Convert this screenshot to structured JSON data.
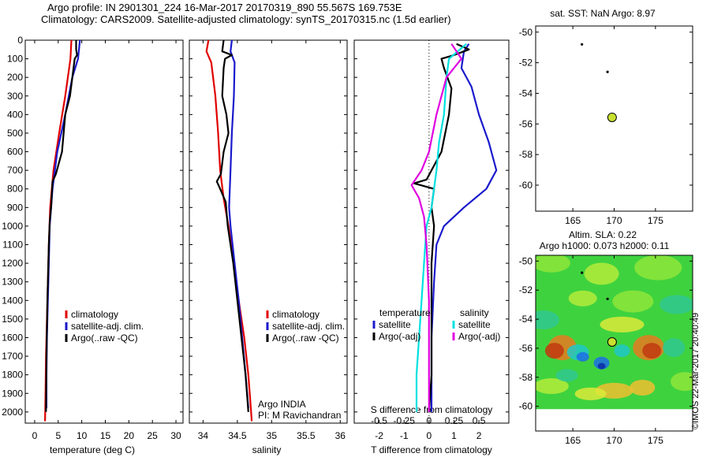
{
  "header": {
    "title_line1": "Argo profile: IN 2901301_224 16-Mar-2017 20170319_890 55.567S 169.753E",
    "title_line2": "Climatology: CARS2009. Satellite-adjusted climatology: synTS_20170315.nc (1.5d earlier)"
  },
  "stamp": "©IMOS 22-Mar-2017 20:40:49",
  "colors": {
    "climatology": "#e00000",
    "satellite": "#1a1acc",
    "argo": "#000000",
    "cyan": "#00e0e0",
    "magenta": "#e000e0"
  },
  "chart_data": [
    {
      "id": "temperature",
      "type": "line",
      "xlabel": "temperature (deg C)",
      "ylabel": "",
      "xlim": [
        -2,
        31.5
      ],
      "ylim": [
        2060,
        0
      ],
      "xticks": [
        0,
        5,
        10,
        15,
        20,
        25,
        30
      ],
      "yticks": [
        0,
        100,
        200,
        300,
        400,
        500,
        600,
        700,
        800,
        900,
        1000,
        1100,
        1200,
        1300,
        1400,
        1500,
        1600,
        1700,
        1800,
        1900,
        2000
      ],
      "legend": {
        "placement": "bottom-center",
        "entries": [
          "climatology",
          "satellite-adj. clim.",
          "Argo(..raw -QC)"
        ]
      },
      "series": [
        {
          "name": "climatology",
          "color": "#e00000",
          "points": [
            [
              7.8,
              0
            ],
            [
              7.6,
              100
            ],
            [
              6.5,
              300
            ],
            [
              5.2,
              500
            ],
            [
              4.0,
              700
            ],
            [
              3.3,
              900
            ],
            [
              3.0,
              1100
            ],
            [
              2.8,
              1300
            ],
            [
              2.6,
              1500
            ],
            [
              2.4,
              1700
            ],
            [
              2.3,
              1900
            ],
            [
              2.2,
              2050
            ]
          ]
        },
        {
          "name": "satellite-adj. clim.",
          "color": "#1a1acc",
          "points": [
            [
              9.6,
              0
            ],
            [
              9.2,
              100
            ],
            [
              8.0,
              200
            ],
            [
              6.5,
              400
            ],
            [
              4.8,
              600
            ],
            [
              3.8,
              800
            ],
            [
              3.2,
              1000
            ],
            [
              3.0,
              1200
            ],
            [
              2.8,
              1400
            ],
            [
              2.6,
              1600
            ],
            [
              2.5,
              1800
            ],
            [
              2.5,
              1980
            ]
          ]
        },
        {
          "name": "Argo(..raw -QC)",
          "color": "#000000",
          "points": [
            [
              8.8,
              0
            ],
            [
              8.8,
              50
            ],
            [
              9.0,
              80
            ],
            [
              8.5,
              100
            ],
            [
              8.0,
              200
            ],
            [
              7.5,
              300
            ],
            [
              6.5,
              400
            ],
            [
              5.8,
              600
            ],
            [
              4.5,
              720
            ],
            [
              3.8,
              760
            ],
            [
              3.5,
              900
            ],
            [
              3.2,
              980
            ],
            [
              3.0,
              1100
            ],
            [
              2.7,
              1400
            ],
            [
              2.5,
              1700
            ],
            [
              2.4,
              2000
            ]
          ]
        }
      ]
    },
    {
      "id": "salinity",
      "type": "line",
      "xlabel": "salinity",
      "ylabel": "",
      "xlim": [
        33.8,
        36.1
      ],
      "ylim": [
        2060,
        0
      ],
      "xticks": [
        34,
        34.5,
        35,
        35.5,
        36
      ],
      "xticklabels": [
        "34",
        "34.5",
        "35",
        "35.5",
        "36"
      ],
      "legend": {
        "placement": "bottom-right",
        "entries": [
          "climatology",
          "satellite-adj. clim.",
          "Argo(..raw -QC)"
        ]
      },
      "annotation": [
        "Argo INDIA",
        "PI: M Ravichandran"
      ],
      "series": [
        {
          "name": "climatology",
          "color": "#e00000",
          "points": [
            [
              34.08,
              0
            ],
            [
              34.05,
              60
            ],
            [
              34.12,
              120
            ],
            [
              34.18,
              300
            ],
            [
              34.22,
              500
            ],
            [
              34.25,
              700
            ],
            [
              34.3,
              850
            ],
            [
              34.37,
              1000
            ],
            [
              34.45,
              1200
            ],
            [
              34.52,
              1400
            ],
            [
              34.6,
              1600
            ],
            [
              34.66,
              1800
            ],
            [
              34.7,
              2000
            ],
            [
              34.71,
              2050
            ]
          ]
        },
        {
          "name": "satellite-adj. clim.",
          "color": "#1a1acc",
          "points": [
            [
              34.42,
              0
            ],
            [
              34.4,
              60
            ],
            [
              34.46,
              120
            ],
            [
              34.45,
              300
            ],
            [
              34.42,
              500
            ],
            [
              34.4,
              700
            ],
            [
              34.38,
              900
            ],
            [
              34.4,
              1000
            ],
            [
              34.46,
              1200
            ],
            [
              34.52,
              1400
            ],
            [
              34.57,
              1600
            ],
            [
              34.62,
              1800
            ],
            [
              34.66,
              1980
            ]
          ]
        },
        {
          "name": "Argo(..raw -QC)",
          "color": "#000000",
          "points": [
            [
              34.3,
              0
            ],
            [
              34.28,
              60
            ],
            [
              34.42,
              80
            ],
            [
              34.32,
              100
            ],
            [
              34.3,
              150
            ],
            [
              34.28,
              300
            ],
            [
              34.34,
              400
            ],
            [
              34.37,
              500
            ],
            [
              34.3,
              600
            ],
            [
              34.26,
              720
            ],
            [
              34.2,
              760
            ],
            [
              34.25,
              800
            ],
            [
              34.33,
              870
            ],
            [
              34.36,
              1000
            ],
            [
              34.44,
              1200
            ],
            [
              34.5,
              1400
            ],
            [
              34.56,
              1600
            ],
            [
              34.62,
              1800
            ],
            [
              34.66,
              2000
            ]
          ]
        }
      ]
    },
    {
      "id": "difference",
      "type": "line",
      "xlabel": "T difference from climatology",
      "top_label": "S difference from climatology",
      "ylabel": "",
      "xlim": [
        -3,
        3.2
      ],
      "ylim": [
        2060,
        0
      ],
      "xticks": [
        -2,
        -1,
        0,
        1,
        2
      ],
      "top_ticks": [
        -2,
        -1,
        0,
        1,
        2
      ],
      "top_ticklabels": [
        "-0.5",
        "-0.25",
        "0",
        "0.25",
        "0.5"
      ],
      "legend": {
        "placement": "bottom",
        "group1_title": "temperature",
        "group2_title": "salinity",
        "group1_entries": [
          "satellite",
          "Argo(-adj)"
        ],
        "group2_entries": [
          "satellite",
          "Argo(-adj)"
        ]
      },
      "series": [
        {
          "name": "temperature satellite",
          "color": "#1a1acc",
          "points": [
            [
              1.6,
              20
            ],
            [
              1.4,
              60
            ],
            [
              1.3,
              150
            ],
            [
              1.7,
              250
            ],
            [
              2.0,
              400
            ],
            [
              2.4,
              550
            ],
            [
              2.7,
              700
            ],
            [
              2.3,
              800
            ],
            [
              1.4,
              900
            ],
            [
              0.6,
              1000
            ],
            [
              0.3,
              1100
            ],
            [
              0.2,
              1300
            ],
            [
              0.1,
              1600
            ],
            [
              0.1,
              2000
            ]
          ]
        },
        {
          "name": "temperature Argo(-adj)",
          "color": "#000000",
          "points": [
            [
              1.1,
              20
            ],
            [
              1.6,
              50
            ],
            [
              1.0,
              80
            ],
            [
              0.5,
              100
            ],
            [
              0.6,
              150
            ],
            [
              0.9,
              260
            ],
            [
              0.8,
              400
            ],
            [
              0.5,
              600
            ],
            [
              -0.1,
              750
            ],
            [
              -0.6,
              770
            ],
            [
              0.2,
              800
            ],
            [
              0.1,
              900
            ],
            [
              0.2,
              1000
            ],
            [
              0.1,
              1200
            ],
            [
              0.1,
              1500
            ],
            [
              0.1,
              1800
            ],
            [
              0.0,
              2000
            ]
          ]
        },
        {
          "name": "salinity satellite",
          "color": "#00e0e0",
          "points": [
            [
              1.5,
              20
            ],
            [
              0.8,
              100
            ],
            [
              0.7,
              200
            ],
            [
              0.6,
              400
            ],
            [
              0.4,
              550
            ],
            [
              0.3,
              700
            ],
            [
              0.1,
              900
            ],
            [
              -0.1,
              1000
            ],
            [
              -0.2,
              1200
            ],
            [
              -0.3,
              1400
            ],
            [
              -0.4,
              1600
            ],
            [
              -0.5,
              1800
            ],
            [
              -0.5,
              2000
            ]
          ]
        },
        {
          "name": "salinity Argo(-adj)",
          "color": "#e000e0",
          "points": [
            [
              0.9,
              20
            ],
            [
              1.2,
              80
            ],
            [
              1.3,
              100
            ],
            [
              0.7,
              200
            ],
            [
              0.3,
              400
            ],
            [
              0.0,
              600
            ],
            [
              -0.3,
              700
            ],
            [
              -0.7,
              780
            ],
            [
              -0.4,
              850
            ],
            [
              -0.2,
              950
            ],
            [
              -0.1,
              1100
            ],
            [
              0.0,
              1400
            ],
            [
              0.0,
              1800
            ],
            [
              0.0,
              2000
            ]
          ]
        }
      ]
    },
    {
      "id": "sst_map",
      "type": "scatter",
      "title": "sat. SST: NaN Argo: 8.97",
      "xlabel": "",
      "ylabel": "",
      "xlim": [
        160.5,
        179.5
      ],
      "ylim": [
        -61.7,
        -49.6
      ],
      "xticks": [
        165,
        170,
        175
      ],
      "yticks": [
        -50,
        -52,
        -54,
        -56,
        -58,
        -60
      ],
      "points": [
        {
          "lon": 166.1,
          "lat": -50.8,
          "marker": "small-dot"
        },
        {
          "lon": 169.2,
          "lat": -52.6,
          "marker": "small-dot"
        },
        {
          "lon": 169.75,
          "lat": -55.57,
          "marker": "profile-circle"
        }
      ]
    },
    {
      "id": "sla_map",
      "type": "heatmap",
      "title_line1": "Altim. SLA: 0.22",
      "title_line2": "Argo h1000: 0.073 h2000: 0.11",
      "xlabel": "",
      "ylabel": "",
      "xlim": [
        160.5,
        179.5
      ],
      "ylim": [
        -61.7,
        -49.6
      ],
      "field_lat_range": [
        -60.2,
        -49.6
      ],
      "xticks": [
        165,
        170,
        175
      ],
      "yticks": [
        -50,
        -52,
        -54,
        -56,
        -58,
        -60
      ],
      "points": [
        {
          "lon": 166.1,
          "lat": -50.8,
          "marker": "small-dot"
        },
        {
          "lon": 169.2,
          "lat": -52.6,
          "marker": "small-dot"
        },
        {
          "lon": 169.75,
          "lat": -55.57,
          "marker": "profile-circle"
        }
      ]
    }
  ]
}
